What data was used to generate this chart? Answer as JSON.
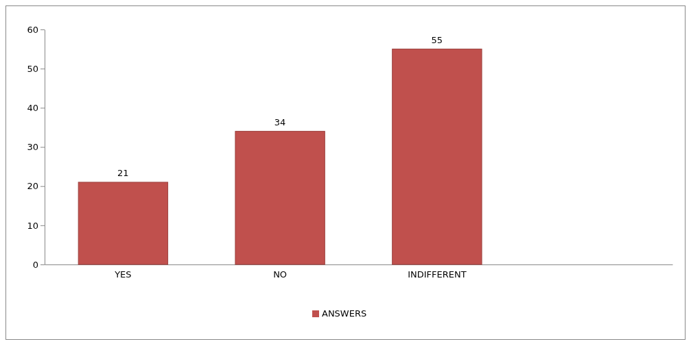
{
  "chart_data": {
    "type": "bar",
    "categories": [
      "YES",
      "NO",
      "INDIFFERENT",
      null
    ],
    "series": [
      {
        "name": "ANSWERS",
        "color": "#c0504d",
        "values": [
          21,
          34,
          55,
          null
        ]
      }
    ],
    "ylim": [
      0,
      60
    ],
    "yticks": [
      0,
      10,
      20,
      30,
      40,
      50,
      60
    ],
    "data_labels": true,
    "legend": "bottom",
    "grid": false
  }
}
